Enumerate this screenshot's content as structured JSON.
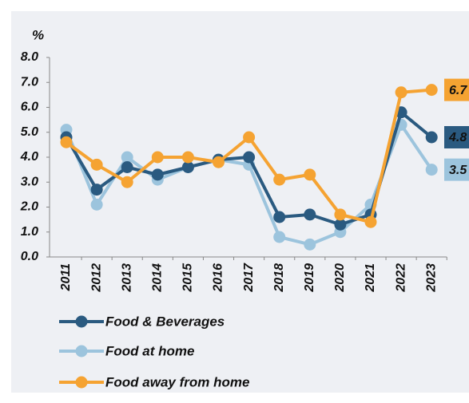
{
  "chart_data": {
    "type": "line",
    "ylabel": "%",
    "categories": [
      "2011",
      "2012",
      "2013",
      "2014",
      "2015",
      "2016",
      "2017",
      "2018",
      "2019",
      "2020",
      "2021",
      "2022",
      "2023"
    ],
    "series": [
      {
        "name": "Food & Beverages",
        "color": "#2a5a80",
        "values": [
          4.8,
          2.7,
          3.6,
          3.3,
          3.6,
          3.9,
          4.0,
          1.6,
          1.7,
          1.3,
          1.7,
          5.8,
          4.8
        ]
      },
      {
        "name": "Food at home",
        "color": "#9cc4dd",
        "values": [
          5.1,
          2.1,
          4.0,
          3.1,
          3.6,
          3.9,
          3.7,
          0.8,
          0.5,
          1.0,
          2.1,
          5.3,
          3.5
        ]
      },
      {
        "name": "Food away from home",
        "color": "#f5a332",
        "values": [
          4.6,
          3.7,
          3.0,
          4.0,
          4.0,
          3.8,
          4.8,
          3.1,
          3.3,
          1.7,
          1.4,
          6.6,
          6.7
        ]
      }
    ],
    "ylim": [
      0,
      8
    ],
    "yticks": [
      {
        "value": 0,
        "label": "0.0"
      },
      {
        "value": 1,
        "label": "1.0"
      },
      {
        "value": 2,
        "label": "2.0"
      },
      {
        "value": 3,
        "label": "3.0"
      },
      {
        "value": 4,
        "label": "4.0"
      },
      {
        "value": 5,
        "label": "5.0"
      },
      {
        "value": 6,
        "label": "6.0"
      },
      {
        "value": 7,
        "label": "7.0"
      },
      {
        "value": 8,
        "label": "8.0"
      }
    ]
  }
}
